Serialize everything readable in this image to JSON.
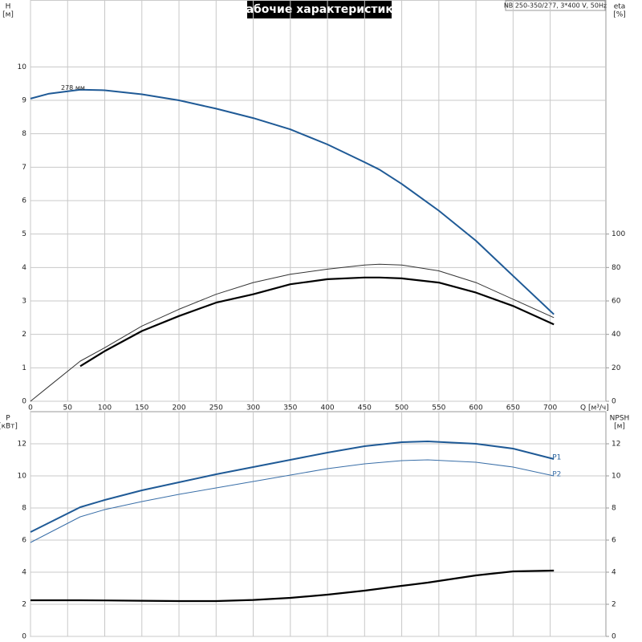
{
  "chart_data": [
    {
      "type": "line",
      "title": "Рабочие характеристики",
      "subtitle": "NB 250-350/277, 3*400 V, 50Hz",
      "xlabel": "Q [м³/ч]",
      "ylabel": "H",
      "yunit": "[м]",
      "y2label": "eta",
      "y2unit": "[%]",
      "annotation": "278 мм",
      "x": [
        0,
        25,
        67,
        100,
        150,
        200,
        250,
        300,
        350,
        400,
        450,
        470,
        500,
        550,
        600,
        650,
        705
      ],
      "xlim": [
        0,
        775
      ],
      "xticks": [
        0,
        50,
        100,
        150,
        200,
        250,
        300,
        350,
        400,
        450,
        500,
        550,
        600,
        650,
        700
      ],
      "ylim": [
        0,
        12
      ],
      "yticks": [
        0,
        1,
        2,
        3,
        4,
        5,
        6,
        7,
        8,
        9,
        10
      ],
      "y2lim": [
        0,
        240
      ],
      "y2ticks": [
        0,
        20,
        40,
        60,
        80,
        100
      ],
      "grid": true,
      "series": [
        {
          "color": "#1f5a96",
          "line_width": 2,
          "values": [
            9.05,
            9.2,
            9.32,
            9.3,
            9.18,
            9.0,
            8.75,
            8.47,
            8.13,
            7.68,
            7.15,
            6.93,
            6.5,
            5.7,
            4.8,
            3.75,
            2.6
          ]
        },
        {
          "color": "#333333",
          "line_width": 1,
          "axis": "y2",
          "values": [
            0,
            9,
            24,
            32,
            45,
            55,
            64,
            71,
            76,
            79,
            81.5,
            82,
            81.5,
            78,
            71,
            61,
            50
          ]
        },
        {
          "color": "#000000",
          "line_width": 2.2,
          "axis": "y2",
          "values": [
            null,
            null,
            21,
            30,
            42,
            51,
            59,
            64,
            70,
            73,
            74,
            74,
            73.5,
            71,
            65,
            57,
            46
          ]
        }
      ]
    },
    {
      "type": "line",
      "ylabel": "P",
      "yunit": "[кВт]",
      "y2label": "NPSH",
      "y2unit": "[м]",
      "x": [
        0,
        67,
        100,
        150,
        200,
        250,
        300,
        350,
        400,
        450,
        500,
        535,
        600,
        650,
        705
      ],
      "xlim": [
        0,
        775
      ],
      "xticks": [
        0,
        50,
        100,
        150,
        200,
        250,
        300,
        350,
        400,
        450,
        500,
        550,
        600,
        650,
        700
      ],
      "ylim": [
        0,
        14
      ],
      "yticks": [
        0,
        2,
        4,
        6,
        8,
        10,
        12
      ],
      "y2lim": [
        0,
        14
      ],
      "y2ticks": [
        0,
        2,
        4,
        6,
        8,
        10,
        12
      ],
      "grid": true,
      "series": [
        {
          "name": "P1",
          "color": "#1f5a96",
          "line_width": 2,
          "values": [
            6.5,
            8.05,
            8.5,
            9.1,
            9.6,
            10.1,
            10.55,
            11.0,
            11.45,
            11.85,
            12.1,
            12.15,
            12.0,
            11.7,
            11.05
          ]
        },
        {
          "name": "P2",
          "color": "#3a6fa8",
          "line_width": 1,
          "values": [
            5.85,
            7.45,
            7.9,
            8.4,
            8.85,
            9.25,
            9.65,
            10.05,
            10.45,
            10.75,
            10.95,
            11.0,
            10.85,
            10.55,
            10.0
          ]
        },
        {
          "color": "#000000",
          "line_width": 2.2,
          "axis": "y2",
          "values": [
            2.25,
            2.25,
            2.24,
            2.22,
            2.2,
            2.2,
            2.27,
            2.4,
            2.6,
            2.85,
            3.15,
            3.35,
            3.8,
            4.05,
            4.1
          ]
        }
      ]
    }
  ]
}
